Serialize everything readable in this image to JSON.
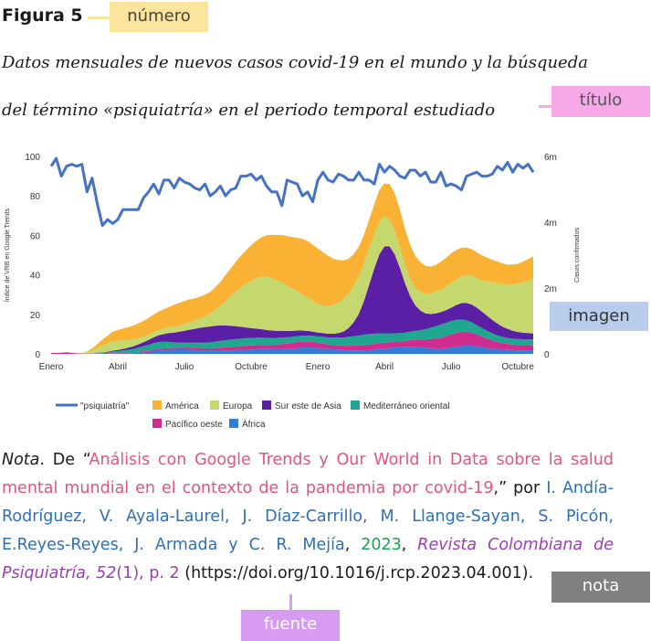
{
  "figure_label": "Figura 5",
  "tags": {
    "numero": "número",
    "titulo": "título",
    "imagen": "imagen",
    "nota": "nota",
    "fuente": "fuente"
  },
  "title": {
    "line1": "Datos mensuales de nuevos casos covid-19 en el mundo y la búsqueda",
    "line2": "del término «psiquiatría» en el periodo temporal estudiado"
  },
  "note": {
    "nota_label": "Nota",
    "de": ". De “",
    "article": "Análisis con Google Trends y Our World in Data sobre la salud mental mundial en el contexto de la pandemia por covid-19",
    "por": ",” por ",
    "authors": "I. Andía-Rodríguez, V. Ayala-Laurel, J. Díaz-Carrillo, M. Llange-Sayan, S. Picón, E.Reyes-Reyes, J. Armada y C. R. Mejía",
    "comma1": ", ",
    "year": "2023",
    "comma2": ", ",
    "journal": "Revista Colombiana de Psiquiatría",
    "comma3": ", ",
    "volume": "52",
    "issue": "(1), p. 2",
    "doi": " (https://doi.org/10.1016/j.rcp.2023.04.001)."
  },
  "chart_data": {
    "type": "area",
    "ylabel": "Índice de VRB en Google Trends",
    "y2label": "Casos confirmados",
    "ylim": [
      0,
      100
    ],
    "y_ticks": [
      "0",
      "20",
      "40",
      "60",
      "80",
      "100"
    ],
    "y2lim": [
      0,
      6
    ],
    "y2_ticks": [
      "0",
      "2m",
      "4m",
      "6m"
    ],
    "x_ticks": [
      "Enero",
      "Abril",
      "Julio",
      "Octubre",
      "Enero",
      "Abril",
      "Julio",
      "Octubre"
    ],
    "x_tick_weeks": [
      0,
      13,
      26,
      39,
      52,
      65,
      78,
      91
    ],
    "stack_order": [
      "África",
      "Pacífico oeste",
      "Mediterráneo oriental",
      "Sur este de Asia",
      "Europa",
      "América"
    ],
    "colors": {
      "psiquiatría": "#4472c4",
      "América": "#f9b233",
      "Europa": "#c5d86d",
      "Sur este de Asia": "#5b1fa5",
      "Mediterráneo oriental": "#1fa88f",
      "Pacífico oeste": "#d02c8f",
      "África": "#2e7ed8"
    },
    "line_series": {
      "name": "\"psiquiatría\"",
      "values": [
        95,
        99,
        90,
        95,
        96,
        95,
        96,
        82,
        89,
        76,
        65,
        68,
        66,
        68,
        73,
        73,
        73,
        73,
        79,
        82,
        86,
        81,
        88,
        88,
        84,
        89,
        87,
        86,
        84,
        83,
        86,
        80,
        82,
        85,
        80,
        83,
        84,
        90,
        90,
        91,
        88,
        90,
        85,
        82,
        82,
        75,
        88,
        87,
        86,
        80,
        82,
        77,
        88,
        92,
        88,
        87,
        91,
        90,
        88,
        88,
        92,
        88,
        88,
        86,
        96,
        92,
        95,
        93,
        90,
        89,
        93,
        93,
        90,
        92,
        87,
        87,
        92,
        85,
        86,
        85,
        83,
        90,
        91,
        92,
        90,
        90,
        91,
        95,
        93,
        97,
        92,
        96,
        94,
        96,
        92
      ]
    },
    "stacked_series": [
      {
        "name": "África",
        "values": [
          0,
          0,
          0,
          0,
          0,
          0,
          0,
          0,
          0,
          0,
          0,
          0,
          0.1,
          0.1,
          0.2,
          0.3,
          0.4,
          0.6,
          0.8,
          1.0,
          1.3,
          1.6,
          1.8,
          2.0,
          2.2,
          2.3,
          2.3,
          2.2,
          2.0,
          1.8,
          1.6,
          1.5,
          1.5,
          1.6,
          1.7,
          1.8,
          1.9,
          2.0,
          2.1,
          2.2,
          2.3,
          2.4,
          2.5,
          2.5,
          2.5,
          2.6,
          2.6,
          2.7,
          3.0,
          3.2,
          3.3,
          3.2,
          3.0,
          2.8,
          2.5,
          2.3,
          2.1,
          1.9,
          1.8,
          1.7,
          1.7,
          1.8,
          1.9,
          2.1,
          2.4,
          2.7,
          3.0,
          3.3,
          3.5,
          3.6,
          3.6,
          3.5,
          3.3,
          3.1,
          2.9,
          2.8,
          2.8,
          2.9,
          3.2,
          3.6,
          4.0,
          4.2,
          4.1,
          3.8,
          3.4,
          3.0,
          2.6,
          2.3,
          2.1,
          2.0,
          1.9,
          1.8,
          1.8,
          1.8,
          1.8
        ]
      },
      {
        "name": "Pacífico oeste",
        "values": [
          0.5,
          0.5,
          0.6,
          0.8,
          0.5,
          0.3,
          0.2,
          0.1,
          0.2,
          0.2,
          0.2,
          0.2,
          0.3,
          0.3,
          0.3,
          0.3,
          0.3,
          0.4,
          0.5,
          0.6,
          0.8,
          1.0,
          1.0,
          0.9,
          0.8,
          0.8,
          0.9,
          1.0,
          1.1,
          1.2,
          1.2,
          1.3,
          1.4,
          1.5,
          1.6,
          1.7,
          1.8,
          1.9,
          2.0,
          2.0,
          2.1,
          2.1,
          2.0,
          2.0,
          2.2,
          2.4,
          2.6,
          2.8,
          3.0,
          3.0,
          2.9,
          2.8,
          2.6,
          2.4,
          2.2,
          2.1,
          2.1,
          2.2,
          2.3,
          2.5,
          2.6,
          2.7,
          2.8,
          2.9,
          3.0,
          3.0,
          2.9,
          2.8,
          2.8,
          3.0,
          3.3,
          3.6,
          3.9,
          4.2,
          4.6,
          5.0,
          5.5,
          6.0,
          6.6,
          7.0,
          7.2,
          7.0,
          6.6,
          6.0,
          5.4,
          4.8,
          4.2,
          3.7,
          3.3,
          3.0,
          2.8,
          2.7,
          2.6,
          2.6,
          2.5
        ]
      },
      {
        "name": "Mediterráneo oriental",
        "values": [
          0,
          0,
          0,
          0,
          0,
          0,
          0,
          0,
          0.1,
          0.2,
          0.3,
          0.5,
          0.8,
          1.0,
          1.2,
          1.5,
          1.8,
          2.2,
          2.6,
          3.0,
          3.3,
          3.4,
          3.3,
          3.1,
          2.8,
          2.6,
          2.5,
          2.5,
          2.6,
          2.7,
          2.9,
          3.1,
          3.3,
          3.5,
          3.6,
          3.7,
          3.8,
          3.8,
          3.8,
          3.8,
          3.8,
          3.7,
          3.6,
          3.5,
          3.4,
          3.3,
          3.2,
          3.1,
          3.0,
          3.0,
          3.0,
          3.1,
          3.2,
          3.4,
          3.6,
          3.8,
          4.0,
          4.2,
          4.5,
          4.8,
          5.0,
          5.2,
          5.3,
          5.2,
          5.0,
          4.7,
          4.5,
          4.3,
          4.2,
          4.2,
          4.3,
          4.5,
          4.8,
          5.2,
          5.7,
          6.2,
          6.6,
          6.8,
          6.8,
          6.6,
          6.2,
          5.8,
          5.3,
          4.8,
          4.3,
          3.9,
          3.6,
          3.4,
          3.2,
          3.1,
          3.0,
          3.0,
          3.0,
          3.0,
          3.0
        ]
      },
      {
        "name": "Sur este de Asia",
        "values": [
          0,
          0,
          0,
          0,
          0,
          0,
          0,
          0,
          0,
          0.1,
          0.2,
          0.3,
          0.4,
          0.6,
          0.8,
          1.0,
          1.3,
          1.6,
          2.0,
          2.5,
          3.0,
          3.5,
          4.0,
          4.5,
          5.0,
          5.5,
          6.0,
          6.5,
          7.0,
          7.5,
          7.8,
          8.0,
          8.0,
          7.8,
          7.5,
          7.0,
          6.5,
          6.0,
          5.5,
          5.0,
          4.6,
          4.3,
          4.0,
          3.8,
          3.6,
          3.4,
          3.2,
          3.0,
          2.8,
          2.6,
          2.4,
          2.2,
          2.0,
          1.9,
          1.9,
          2.0,
          2.3,
          3.0,
          4.5,
          7.0,
          11.0,
          17.0,
          25.0,
          33.0,
          40.0,
          44.0,
          44.0,
          40.0,
          33.0,
          25.0,
          18.0,
          13.0,
          10.0,
          8.0,
          7.0,
          6.5,
          6.3,
          6.4,
          6.8,
          7.5,
          8.3,
          8.8,
          9.0,
          8.8,
          8.3,
          7.6,
          6.8,
          6.0,
          5.2,
          4.6,
          4.0,
          3.6,
          3.3,
          3.1,
          3.0
        ]
      },
      {
        "name": "Europa",
        "values": [
          0,
          0,
          0,
          0,
          0,
          0,
          0,
          0.5,
          1.5,
          2.5,
          3.5,
          4.2,
          4.6,
          4.6,
          4.3,
          3.9,
          3.5,
          3.1,
          2.8,
          2.6,
          2.5,
          2.5,
          2.6,
          2.8,
          3.0,
          3.2,
          3.5,
          3.9,
          4.3,
          4.8,
          5.5,
          6.5,
          8.0,
          10.0,
          12.5,
          15.0,
          17.5,
          20.0,
          22.0,
          24.0,
          25.5,
          26.5,
          27.0,
          26.5,
          25.5,
          24.5,
          23.0,
          21.5,
          20.0,
          18.5,
          17.0,
          15.5,
          14.5,
          14.0,
          14.0,
          14.5,
          15.5,
          16.5,
          17.5,
          18.5,
          19.0,
          19.0,
          18.5,
          17.5,
          16.5,
          15.0,
          13.5,
          12.0,
          10.5,
          9.5,
          9.0,
          9.0,
          9.5,
          10.0,
          10.5,
          11.0,
          11.5,
          12.0,
          12.5,
          13.0,
          13.5,
          14.0,
          14.5,
          15.0,
          16.0,
          17.5,
          19.0,
          20.5,
          21.5,
          22.5,
          23.5,
          24.5,
          25.5,
          26.5,
          27.5
        ]
      },
      {
        "name": "América",
        "values": [
          0,
          0,
          0,
          0,
          0,
          0,
          0.2,
          0.5,
          1.0,
          2.0,
          3.0,
          4.0,
          5.0,
          5.5,
          6.0,
          6.5,
          7.0,
          7.5,
          8.0,
          8.5,
          9.0,
          9.5,
          10.0,
          10.5,
          11.0,
          11.5,
          11.5,
          11.5,
          11.0,
          11.0,
          11.0,
          11.0,
          11.5,
          12.0,
          13.0,
          14.0,
          15.0,
          16.0,
          17.0,
          18.0,
          19.0,
          20.0,
          21.0,
          22.0,
          23.0,
          24.0,
          25.0,
          26.0,
          27.0,
          28.0,
          28.5,
          28.5,
          28.0,
          27.0,
          25.5,
          23.5,
          21.5,
          19.5,
          17.5,
          16.0,
          15.0,
          14.5,
          14.5,
          15.0,
          16.0,
          17.0,
          18.0,
          19.0,
          19.0,
          18.0,
          17.0,
          16.0,
          15.0,
          14.0,
          13.5,
          13.5,
          14.0,
          14.5,
          15.0,
          15.0,
          14.5,
          14.0,
          13.5,
          13.0,
          12.5,
          12.0,
          11.5,
          11.0,
          10.5,
          10.0,
          10.0,
          10.0,
          10.5,
          11.0,
          11.5
        ]
      }
    ],
    "legend": [
      "\"psiquiatría\"",
      "América",
      "Europa",
      "Sur este de Asia",
      "Mediterráneo oriental",
      "Pacífico oeste",
      "África"
    ]
  }
}
